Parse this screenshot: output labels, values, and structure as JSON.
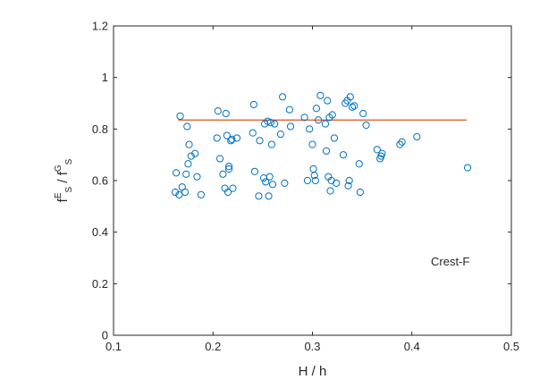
{
  "chart_data": {
    "type": "scatter",
    "title": "",
    "xlabel": "H / h",
    "ylabel": {
      "base": "f",
      "sub1": "S",
      "sup1": "E",
      "sep": " / ",
      "base2": "f",
      "sub2": "S",
      "sup2": "G"
    },
    "xlim": [
      0.1,
      0.5
    ],
    "ylim": [
      0,
      1.2
    ],
    "xticks": [
      "0.1",
      "0.2",
      "0.3",
      "0.4",
      "0.5"
    ],
    "yticks": [
      "0",
      "0.2",
      "0.4",
      "0.6",
      "0.8",
      "1",
      "1.2"
    ],
    "grid": false,
    "annotation": "Crest-F",
    "marker_color": "#0072BD",
    "line_color": "#D95319",
    "series": [
      {
        "marker": "open-circle",
        "points": [
          [
            0.162,
            0.555
          ],
          [
            0.163,
            0.63
          ],
          [
            0.166,
            0.545
          ],
          [
            0.167,
            0.85
          ],
          [
            0.169,
            0.575
          ],
          [
            0.172,
            0.555
          ],
          [
            0.173,
            0.625
          ],
          [
            0.174,
            0.81
          ],
          [
            0.175,
            0.665
          ],
          [
            0.176,
            0.74
          ],
          [
            0.178,
            0.695
          ],
          [
            0.182,
            0.705
          ],
          [
            0.184,
            0.615
          ],
          [
            0.188,
            0.545
          ],
          [
            0.204,
            0.765
          ],
          [
            0.205,
            0.87
          ],
          [
            0.207,
            0.685
          ],
          [
            0.21,
            0.625
          ],
          [
            0.212,
            0.57
          ],
          [
            0.213,
            0.86
          ],
          [
            0.214,
            0.775
          ],
          [
            0.215,
            0.555
          ],
          [
            0.216,
            0.655
          ],
          [
            0.216,
            0.645
          ],
          [
            0.218,
            0.755
          ],
          [
            0.219,
            0.76
          ],
          [
            0.22,
            0.57
          ],
          [
            0.224,
            0.765
          ],
          [
            0.24,
            0.785
          ],
          [
            0.241,
            0.895
          ],
          [
            0.242,
            0.635
          ],
          [
            0.246,
            0.54
          ],
          [
            0.247,
            0.755
          ],
          [
            0.251,
            0.61
          ],
          [
            0.252,
            0.82
          ],
          [
            0.253,
            0.595
          ],
          [
            0.255,
            0.83
          ],
          [
            0.256,
            0.54
          ],
          [
            0.257,
            0.615
          ],
          [
            0.258,
            0.825
          ],
          [
            0.259,
            0.74
          ],
          [
            0.26,
            0.585
          ],
          [
            0.262,
            0.82
          ],
          [
            0.268,
            0.78
          ],
          [
            0.27,
            0.925
          ],
          [
            0.272,
            0.59
          ],
          [
            0.277,
            0.875
          ],
          [
            0.278,
            0.81
          ],
          [
            0.292,
            0.845
          ],
          [
            0.295,
            0.6
          ],
          [
            0.297,
            0.8
          ],
          [
            0.3,
            0.74
          ],
          [
            0.301,
            0.645
          ],
          [
            0.302,
            0.62
          ],
          [
            0.303,
            0.6
          ],
          [
            0.304,
            0.88
          ],
          [
            0.306,
            0.835
          ],
          [
            0.308,
            0.93
          ],
          [
            0.313,
            0.82
          ],
          [
            0.314,
            0.715
          ],
          [
            0.315,
            0.91
          ],
          [
            0.316,
            0.615
          ],
          [
            0.317,
            0.845
          ],
          [
            0.318,
            0.56
          ],
          [
            0.319,
            0.6
          ],
          [
            0.32,
            0.855
          ],
          [
            0.322,
            0.765
          ],
          [
            0.324,
            0.59
          ],
          [
            0.331,
            0.7
          ],
          [
            0.333,
            0.9
          ],
          [
            0.335,
            0.91
          ],
          [
            0.336,
            0.58
          ],
          [
            0.337,
            0.6
          ],
          [
            0.338,
            0.925
          ],
          [
            0.34,
            0.885
          ],
          [
            0.342,
            0.89
          ],
          [
            0.347,
            0.665
          ],
          [
            0.348,
            0.555
          ],
          [
            0.351,
            0.86
          ],
          [
            0.354,
            0.815
          ],
          [
            0.365,
            0.72
          ],
          [
            0.368,
            0.685
          ],
          [
            0.369,
            0.695
          ],
          [
            0.37,
            0.705
          ],
          [
            0.388,
            0.74
          ],
          [
            0.39,
            0.75
          ],
          [
            0.405,
            0.77
          ],
          [
            0.456,
            0.65
          ]
        ]
      }
    ],
    "reference_line": {
      "x": [
        0.165,
        0.455
      ],
      "y": [
        0.835,
        0.835
      ]
    }
  }
}
